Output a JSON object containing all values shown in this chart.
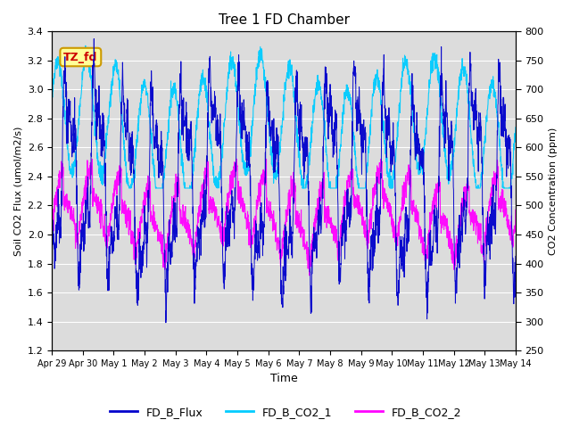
{
  "title": "Tree 1 FD Chamber",
  "xlabel": "Time",
  "ylabel_left": "Soil CO2 Flux (umol/m2/s)",
  "ylabel_right": "CO2 Concentration (ppm)",
  "ylim_left": [
    1.2,
    3.4
  ],
  "ylim_right": [
    250,
    800
  ],
  "yticks_left": [
    1.2,
    1.4,
    1.6,
    1.8,
    2.0,
    2.2,
    2.4,
    2.6,
    2.8,
    3.0,
    3.2,
    3.4
  ],
  "yticks_right": [
    250,
    300,
    350,
    400,
    450,
    500,
    550,
    600,
    650,
    700,
    750,
    800
  ],
  "xtick_labels": [
    "Apr 29",
    "Apr 30",
    "May 1",
    "May 2",
    "May 3",
    "May 4",
    "May 5",
    "May 6",
    "May 7",
    "May 8",
    "May 9",
    "May 10",
    "May 11",
    "May 12",
    "May 13",
    "May 14"
  ],
  "color_flux": "#0000CC",
  "color_co2_1": "#00CCFF",
  "color_co2_2": "#FF00FF",
  "legend_labels": [
    "FD_B_Flux",
    "FD_B_CO2_1",
    "FD_B_CO2_2"
  ],
  "annotation_text": "TZ_fd",
  "annotation_color": "#CC0000",
  "annotation_bg": "#FFFF99",
  "annotation_border": "#CC9900",
  "fig_bg": "#FFFFFF",
  "plot_bg": "#DCDCDC",
  "grid_color": "#FFFFFF",
  "n_days": 16,
  "seed": 42
}
